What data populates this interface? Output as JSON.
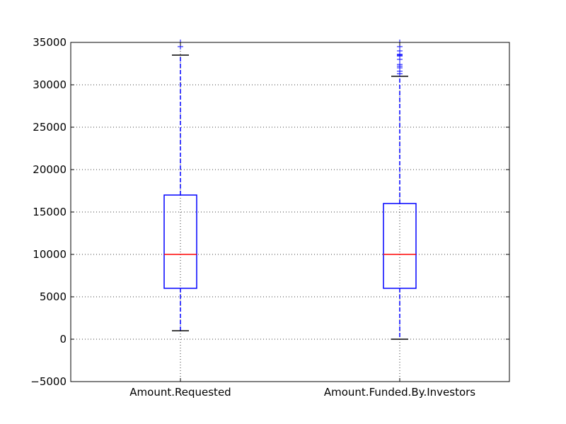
{
  "chart_data": {
    "type": "box",
    "title": "",
    "xlabel": "",
    "ylabel": "",
    "ylim": [
      -5000,
      35000
    ],
    "y_ticks": [
      -5000,
      0,
      5000,
      10000,
      15000,
      20000,
      25000,
      30000,
      35000
    ],
    "y_tick_labels": [
      "−5000",
      "0",
      "5000",
      "10000",
      "15000",
      "20000",
      "25000",
      "30000",
      "35000"
    ],
    "grid": true,
    "categories": [
      "Amount.Requested",
      "Amount.Funded.By.Investors"
    ],
    "boxes": [
      {
        "whisker_low": 1000,
        "q1": 6000,
        "median": 10000,
        "q3": 17000,
        "whisker_high": 33500,
        "outliers": [
          34500,
          35000
        ]
      },
      {
        "whisker_low": 0,
        "q1": 6000,
        "median": 10000,
        "q3": 16000,
        "whisker_high": 31000,
        "outliers": [
          31300,
          31600,
          32000,
          32200,
          32400,
          33000,
          33400,
          33500,
          33600,
          34000,
          34500,
          35000
        ]
      }
    ],
    "colors": {
      "box": "#0000ff",
      "median": "#ff0000",
      "whisker": "#0000ff",
      "cap": "#000000",
      "outlier": "#0000ff",
      "grid": "#000000",
      "axes": "#000000"
    }
  }
}
